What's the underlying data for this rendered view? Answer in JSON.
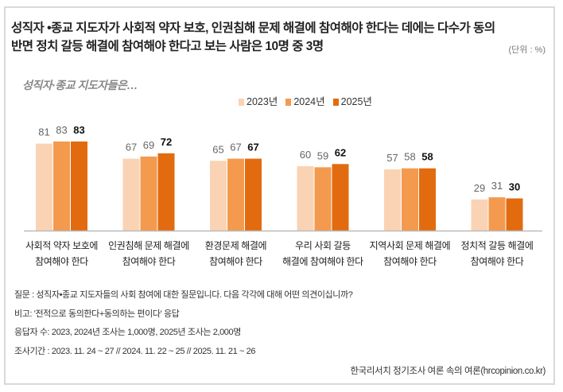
{
  "title_lines": [
    "성직자 •종교 지도자가 사회적 약자 보호, 인권침해 문제 해결에 참여해야 한다는 데에는 다수가 동의",
    "반면 정치 갈등 해결에 참여해야 한다고 보는 사람은 10명 중 3명"
  ],
  "unit": "(단위 : %)",
  "subtitle": "성직자·종교 지도자들은…",
  "chart_data": {
    "type": "bar",
    "categories": [
      [
        "사회적 약자 보호에",
        "참여해야 한다"
      ],
      [
        "인권침해 문제 해결에",
        "참여해야 한다"
      ],
      [
        "환경문제 해결에",
        "참여해야 한다"
      ],
      [
        "우리 사회 갈등",
        "해결에 참여해야 한다"
      ],
      [
        "지역사회 문제 해결에",
        "참여해야 한다"
      ],
      [
        "정치적 갈등 해결에",
        "참여해야 한다"
      ]
    ],
    "series": [
      {
        "name": "2023년",
        "values": [
          81,
          67,
          65,
          60,
          57,
          29
        ],
        "color": "#FAD3B4"
      },
      {
        "name": "2024년",
        "values": [
          83,
          69,
          67,
          59,
          58,
          31
        ],
        "color": "#F39A4E"
      },
      {
        "name": "2025년",
        "values": [
          83,
          72,
          67,
          62,
          58,
          30
        ],
        "color": "#E26B0F"
      }
    ],
    "ylim": [
      0,
      100
    ],
    "grid": false,
    "legend": "top-center"
  },
  "notes": [
    "질문 : 성직자•종교 지도자들의 사회 참여에 대한 질문입니다. 다음 각각에 대해 어떤 의견이십니까?",
    "비고: '전적으로 동의한다+동의하는 편이다' 응답",
    "응답자 수: 2023, 2024년 조사는 1,000명, 2025년 조사는 2,000명",
    "조사기간 : 2023. 11. 24 ~ 27 // 2024. 11. 22 ~ 25 // 2025. 11. 21 ~ 26"
  ],
  "source": "한국리서치 정기조사 여론 속의 여론(hrcopinion.co.kr)"
}
